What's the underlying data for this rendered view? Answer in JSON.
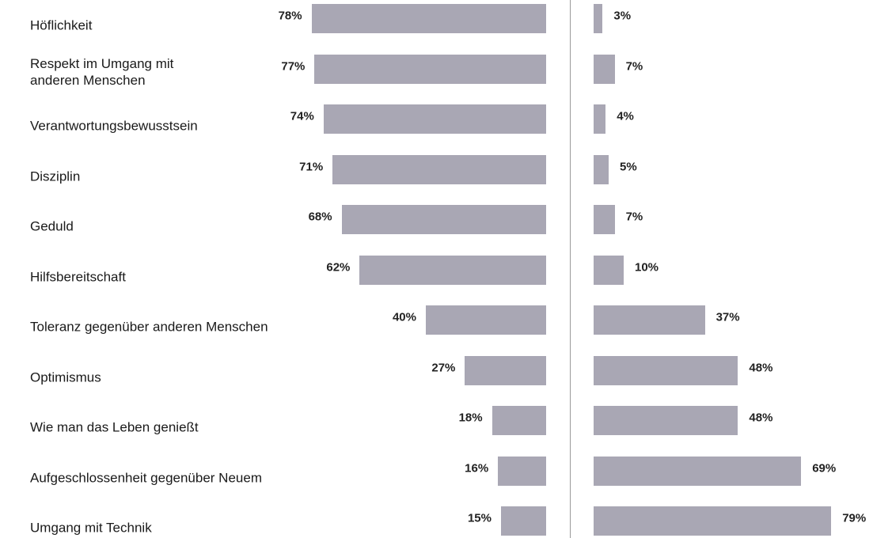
{
  "chart_data": {
    "type": "butterfly-bar",
    "categories": [
      "Höflichkeit",
      "Respekt im Umgang mit\nanderen Menschen",
      "Verantwortungsbewusstsein",
      "Disziplin",
      "Geduld",
      "Hilfsbereitschaft",
      "Toleranz gegenüber anderen Menschen",
      "Optimismus",
      "Wie man das Leben genießt",
      "Aufgeschlossenheit gegenüber Neuem",
      "Umgang mit Technik"
    ],
    "series": [
      {
        "color": "#a9a7b4",
        "values": [
          78,
          77,
          74,
          71,
          68,
          62,
          40,
          27,
          18,
          16,
          15
        ],
        "value_labels": [
          "78%",
          "77%",
          "74%",
          "71%",
          "68%",
          "62%",
          "40%",
          "27%",
          "18%",
          "16%",
          "15%"
        ]
      },
      {
        "color": "#a9a7b4",
        "values": [
          3,
          7,
          4,
          5,
          7,
          10,
          37,
          48,
          48,
          69,
          79
        ],
        "value_labels": [
          "3%",
          "7%",
          "4%",
          "5%",
          "7%",
          "10%",
          "37%",
          "48%",
          "48%",
          "69%",
          "79%"
        ]
      }
    ]
  }
}
